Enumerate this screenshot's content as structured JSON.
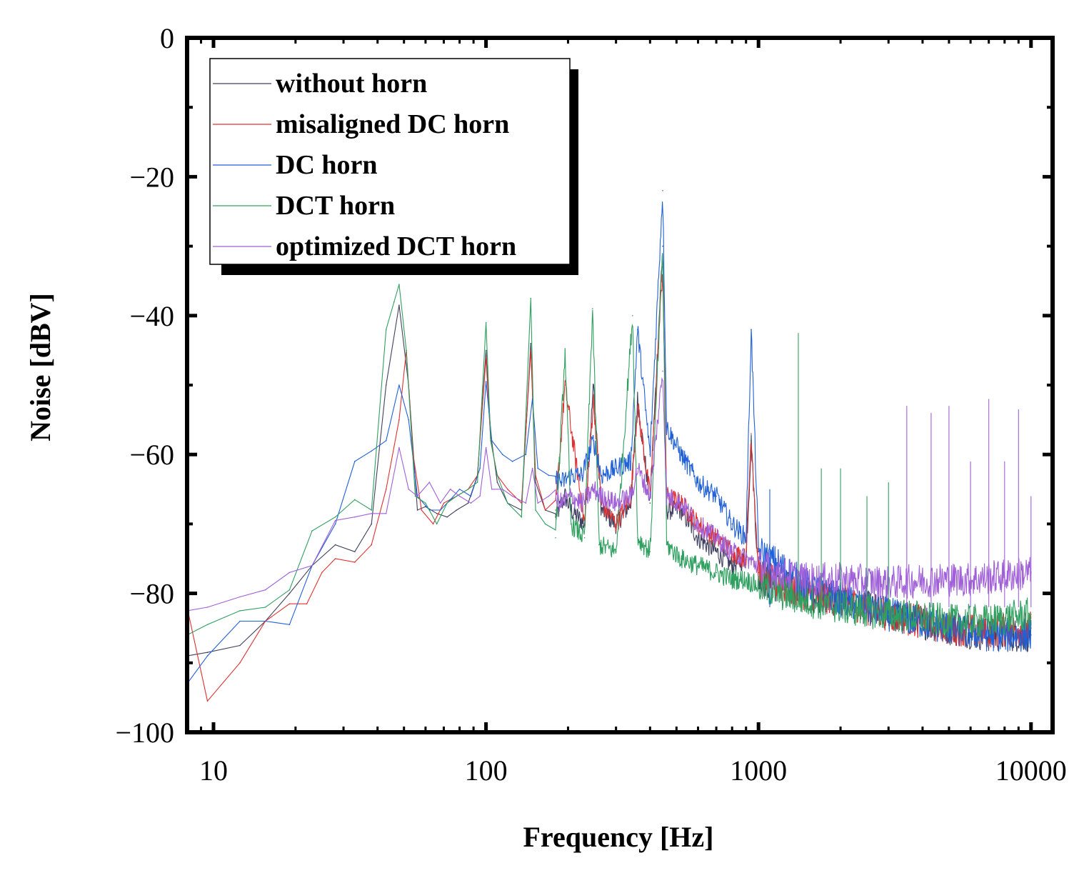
{
  "chart_data": {
    "type": "line",
    "title": "",
    "xlabel": "Frequency [Hz]",
    "ylabel": "Noise [dBV]",
    "xscale": "log",
    "xlim": [
      8,
      12000
    ],
    "ylim": [
      -100,
      0
    ],
    "x_ticks": [
      10,
      100,
      1000,
      10000
    ],
    "x_tick_labels": [
      "10",
      "100",
      "1000",
      "10000"
    ],
    "y_ticks": [
      0,
      -20,
      -40,
      -60,
      -80,
      -100
    ],
    "y_tick_labels": [
      "0",
      "−20",
      "−40",
      "−60",
      "−80",
      "−100"
    ],
    "legend_position": "top-left",
    "series": [
      {
        "name": "without horn",
        "color": "#404060",
        "x": [
          8,
          9.5,
          12.5,
          15.5,
          19,
          23,
          28,
          33,
          38,
          43,
          48,
          52,
          56,
          60,
          66,
          72,
          78,
          86,
          93,
          100,
          104,
          110,
          120,
          135,
          146,
          152,
          165,
          180,
          195,
          205,
          230,
          248,
          265,
          300,
          340,
          360,
          400,
          445,
          460,
          520,
          600,
          700,
          800,
          900,
          940,
          1000,
          1200,
          1500,
          2000,
          3000,
          5000,
          7000,
          10000
        ],
        "y": [
          -89,
          -88.5,
          -87.5,
          -84,
          -80,
          -76,
          -73,
          -74,
          -70,
          -50,
          -38.5,
          -50,
          -68,
          -67.5,
          -68.5,
          -69,
          -68,
          -67,
          -63,
          -45,
          -57,
          -64,
          -67,
          -68,
          -44,
          -64,
          -68,
          -69,
          -66,
          -68,
          -70,
          -50,
          -68,
          -70,
          -67,
          -52,
          -67,
          -30,
          -68,
          -68,
          -72,
          -74,
          -76,
          -75,
          -58,
          -78,
          -79,
          -80,
          -81,
          -83,
          -85,
          -86,
          -86
        ]
      },
      {
        "name": "misaligned DC horn",
        "color": "#e03030",
        "x": [
          8,
          9.5,
          12.5,
          15.5,
          19,
          22,
          25,
          28,
          33,
          38,
          43,
          48,
          51,
          54,
          58,
          64,
          70,
          78,
          86,
          93,
          100,
          104,
          110,
          120,
          135,
          146,
          152,
          165,
          180,
          195,
          230,
          248,
          265,
          300,
          340,
          360,
          400,
          445,
          460,
          520,
          600,
          700,
          800,
          900,
          940,
          1000,
          1200,
          1500,
          2000,
          3000,
          5000,
          7000,
          10000
        ],
        "y": [
          -82,
          -95.5,
          -90,
          -84,
          -81.5,
          -81.5,
          -77,
          -75,
          -75.5,
          -73,
          -65,
          -55,
          -45,
          -60,
          -68,
          -70,
          -67,
          -66,
          -65,
          -63,
          -46,
          -58,
          -63,
          -65,
          -67,
          -45,
          -63,
          -68,
          -68,
          -50,
          -70,
          -52,
          -67,
          -70,
          -66,
          -53,
          -66,
          -33,
          -66,
          -67,
          -70,
          -72,
          -74,
          -75,
          -57,
          -77,
          -79,
          -80,
          -81,
          -83,
          -85,
          -85.5,
          -85
        ]
      },
      {
        "name": "DC horn",
        "color": "#2060d8",
        "x": [
          8,
          9.5,
          12.5,
          15.5,
          19,
          23,
          28,
          33,
          38,
          43,
          48,
          52,
          56,
          62,
          68,
          74,
          80,
          88,
          95,
          100,
          105,
          115,
          125,
          140,
          148,
          155,
          170,
          190,
          205,
          225,
          248,
          265,
          300,
          340,
          360,
          400,
          445,
          460,
          520,
          600,
          700,
          800,
          900,
          940,
          1000,
          1200,
          1500,
          2000,
          3000,
          5000,
          7000,
          10000
        ],
        "y": [
          -93,
          -89,
          -84,
          -84,
          -84.5,
          -76,
          -70,
          -61,
          -59.5,
          -58,
          -50,
          -55,
          -66,
          -68,
          -68,
          -66.5,
          -65,
          -66,
          -62,
          -49.5,
          -58,
          -60,
          -61,
          -60,
          -52,
          -62,
          -63,
          -64,
          -63,
          -63,
          -58,
          -63,
          -62,
          -61,
          -42,
          -60,
          -22,
          -56,
          -60,
          -64,
          -66,
          -70,
          -72,
          -42,
          -74,
          -76,
          -79,
          -81,
          -83,
          -85,
          -86,
          -86
        ]
      },
      {
        "name": "DCT horn",
        "color": "#30a060",
        "x": [
          8,
          9.5,
          12.5,
          15.5,
          19,
          23,
          28,
          33,
          38,
          43,
          46,
          48,
          51,
          55,
          60,
          66,
          72,
          78,
          86,
          93,
          100,
          104,
          110,
          120,
          135,
          146,
          152,
          165,
          180,
          195,
          205,
          230,
          246,
          260,
          300,
          345,
          360,
          400,
          445,
          460,
          520,
          600,
          700,
          800,
          900,
          1000,
          1200,
          1500,
          2000,
          3000,
          5000,
          7000,
          10000
        ],
        "y": [
          -86,
          -84.5,
          -82.5,
          -82,
          -79.5,
          -71,
          -69,
          -66.5,
          -68,
          -42,
          -38,
          -35.5,
          -45,
          -66,
          -67,
          -70,
          -67,
          -66,
          -65,
          -64,
          -41,
          -58,
          -63,
          -67,
          -69,
          -37.5,
          -68,
          -70,
          -72,
          -45,
          -70,
          -72,
          -39,
          -73,
          -74,
          -40,
          -72,
          -74,
          -30,
          -73,
          -75,
          -76,
          -77,
          -78,
          -78,
          -79,
          -80,
          -81,
          -82,
          -83,
          -84,
          -84,
          -83
        ]
      },
      {
        "name": "optimized DCT horn",
        "color": "#a060d8",
        "x": [
          8,
          9.5,
          12.5,
          15.5,
          19,
          23,
          28,
          33,
          38,
          43,
          48,
          52,
          56,
          62,
          68,
          74,
          80,
          88,
          95,
          100,
          105,
          115,
          125,
          140,
          148,
          155,
          170,
          190,
          205,
          225,
          248,
          265,
          300,
          340,
          360,
          400,
          445,
          460,
          520,
          600,
          700,
          800,
          900,
          1000,
          1200,
          1500,
          2000,
          3000,
          4500,
          6000,
          8000,
          10000
        ],
        "y": [
          -82.5,
          -82,
          -80.5,
          -79.5,
          -77,
          -76,
          -69.5,
          -69,
          -68.5,
          -68.5,
          -59,
          -65,
          -66,
          -64,
          -67,
          -65,
          -66,
          -67,
          -66,
          -59,
          -65,
          -65,
          -66,
          -67,
          -62,
          -67,
          -66,
          -67,
          -66,
          -67,
          -65,
          -66,
          -67,
          -66,
          -62,
          -66,
          -48,
          -66,
          -67,
          -70,
          -72,
          -74,
          -75,
          -76,
          -77,
          -78,
          -78,
          -78.5,
          -78,
          -78,
          -77.5,
          -77
        ]
      }
    ],
    "spikes": [
      {
        "x": 1400,
        "y": -42.5,
        "color": "#30a060"
      },
      {
        "x": 2000,
        "y": -62,
        "color": "#30a060"
      },
      {
        "x": 2500,
        "y": -66,
        "color": "#30a060"
      },
      {
        "x": 3500,
        "y": -53,
        "color": "#a060d8"
      },
      {
        "x": 4300,
        "y": -54,
        "color": "#a060d8"
      },
      {
        "x": 5000,
        "y": -53,
        "color": "#a060d8"
      },
      {
        "x": 6000,
        "y": -61,
        "color": "#a060d8"
      },
      {
        "x": 7000,
        "y": -52,
        "color": "#a060d8"
      },
      {
        "x": 8000,
        "y": -61,
        "color": "#a060d8"
      },
      {
        "x": 9000,
        "y": -53.5,
        "color": "#a060d8"
      },
      {
        "x": 10000,
        "y": -66,
        "color": "#a060d8"
      },
      {
        "x": 1100,
        "y": -65,
        "color": "#2060d8"
      },
      {
        "x": 1700,
        "y": -62,
        "color": "#30a060"
      },
      {
        "x": 3000,
        "y": -64,
        "color": "#30a060"
      }
    ]
  }
}
